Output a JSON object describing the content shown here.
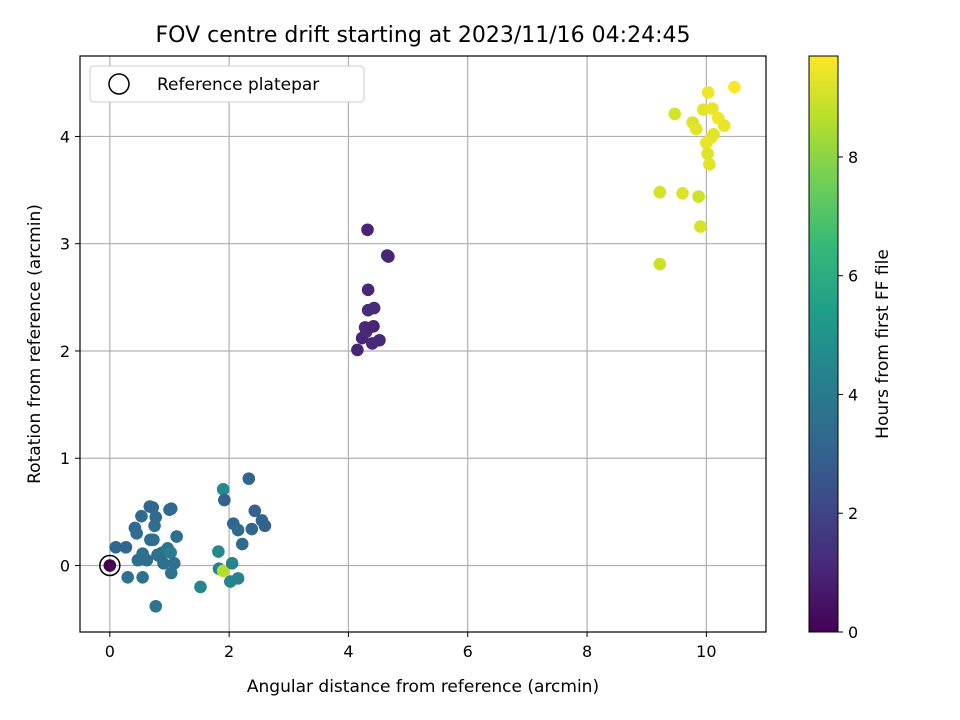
{
  "chart_data": {
    "type": "scatter",
    "title": "FOV centre drift starting at 2023/11/16 04:24:45",
    "xlabel": "Angular distance from reference (arcmin)",
    "ylabel": "Rotation from reference (arcmin)",
    "xlim": [
      -0.5,
      11.0
    ],
    "ylim": [
      -0.62,
      4.75
    ],
    "xticks": [
      0,
      2,
      4,
      6,
      8,
      10
    ],
    "yticks": [
      0,
      1,
      2,
      3,
      4
    ],
    "grid": true,
    "legend": {
      "placement": "top-left",
      "entries": [
        "Reference platepar"
      ]
    },
    "reference_point": {
      "x": 0.0,
      "y": 0.0
    },
    "colorbar": {
      "label": "Hours from first FF file",
      "range": [
        0,
        9.7
      ],
      "ticks": [
        0,
        2,
        4,
        6,
        8
      ],
      "colormap": [
        "#440154",
        "#482878",
        "#3e4989",
        "#31688e",
        "#26828e",
        "#1f9e89",
        "#35b779",
        "#6ece58",
        "#b5de2b",
        "#fde725"
      ]
    },
    "series": [
      {
        "points": [
          {
            "x": 0.0,
            "y": 0.0,
            "c": 0.0
          },
          {
            "x": 0.1,
            "y": 0.17,
            "c": 3.2
          },
          {
            "x": 0.27,
            "y": 0.17,
            "c": 3.2
          },
          {
            "x": 0.3,
            "y": -0.11,
            "c": 3.6
          },
          {
            "x": 0.42,
            "y": 0.35,
            "c": 3.3
          },
          {
            "x": 0.45,
            "y": 0.3,
            "c": 3.4
          },
          {
            "x": 0.47,
            "y": 0.05,
            "c": 3.5
          },
          {
            "x": 0.53,
            "y": 0.46,
            "c": 3.3
          },
          {
            "x": 0.55,
            "y": 0.11,
            "c": 3.6
          },
          {
            "x": 0.55,
            "y": -0.11,
            "c": 3.7
          },
          {
            "x": 0.62,
            "y": 0.05,
            "c": 3.5
          },
          {
            "x": 0.67,
            "y": 0.55,
            "c": 3.3
          },
          {
            "x": 0.68,
            "y": 0.24,
            "c": 3.4
          },
          {
            "x": 0.72,
            "y": 0.54,
            "c": 3.2
          },
          {
            "x": 0.73,
            "y": 0.24,
            "c": 3.6
          },
          {
            "x": 0.75,
            "y": 0.37,
            "c": 3.5
          },
          {
            "x": 0.77,
            "y": 0.45,
            "c": 3.4
          },
          {
            "x": 0.77,
            "y": -0.38,
            "c": 3.8
          },
          {
            "x": 0.8,
            "y": 0.1,
            "c": 3.3
          },
          {
            "x": 0.82,
            "y": 0.09,
            "c": 3.7
          },
          {
            "x": 0.88,
            "y": 0.12,
            "c": 3.6
          },
          {
            "x": 0.9,
            "y": 0.02,
            "c": 3.5
          },
          {
            "x": 0.97,
            "y": 0.16,
            "c": 3.8
          },
          {
            "x": 1.0,
            "y": 0.52,
            "c": 3.4
          },
          {
            "x": 1.02,
            "y": 0.12,
            "c": 4.1
          },
          {
            "x": 1.03,
            "y": 0.53,
            "c": 3.3
          },
          {
            "x": 1.03,
            "y": -0.07,
            "c": 3.7
          },
          {
            "x": 1.08,
            "y": 0.02,
            "c": 3.6
          },
          {
            "x": 1.12,
            "y": 0.27,
            "c": 3.5
          },
          {
            "x": 1.52,
            "y": -0.2,
            "c": 4.4
          },
          {
            "x": 1.82,
            "y": 0.13,
            "c": 4.6
          },
          {
            "x": 1.83,
            "y": -0.03,
            "c": 4.3
          },
          {
            "x": 1.9,
            "y": 0.71,
            "c": 4.6
          },
          {
            "x": 1.9,
            "y": -0.05,
            "c": 8.6
          },
          {
            "x": 1.92,
            "y": 0.61,
            "c": 3.0
          },
          {
            "x": 2.02,
            "y": -0.15,
            "c": 4.5
          },
          {
            "x": 2.05,
            "y": 0.02,
            "c": 4.4
          },
          {
            "x": 2.07,
            "y": 0.39,
            "c": 3.2
          },
          {
            "x": 2.15,
            "y": 0.33,
            "c": 3.3
          },
          {
            "x": 2.15,
            "y": -0.12,
            "c": 4.3
          },
          {
            "x": 2.22,
            "y": 0.2,
            "c": 3.3
          },
          {
            "x": 2.33,
            "y": 0.81,
            "c": 3.1
          },
          {
            "x": 2.38,
            "y": 0.34,
            "c": 3.2
          },
          {
            "x": 2.43,
            "y": 0.51,
            "c": 3.0
          },
          {
            "x": 2.55,
            "y": 0.42,
            "c": 3.1
          },
          {
            "x": 2.6,
            "y": 0.37,
            "c": 3.0
          },
          {
            "x": 4.15,
            "y": 2.01,
            "c": 1.0
          },
          {
            "x": 4.23,
            "y": 2.12,
            "c": 1.0
          },
          {
            "x": 4.28,
            "y": 2.22,
            "c": 1.1
          },
          {
            "x": 4.3,
            "y": 2.18,
            "c": 1.2
          },
          {
            "x": 4.32,
            "y": 3.13,
            "c": 1.0
          },
          {
            "x": 4.33,
            "y": 2.57,
            "c": 1.1
          },
          {
            "x": 4.33,
            "y": 2.38,
            "c": 1.2
          },
          {
            "x": 4.4,
            "y": 2.07,
            "c": 1.1
          },
          {
            "x": 4.42,
            "y": 2.23,
            "c": 1.0
          },
          {
            "x": 4.43,
            "y": 2.4,
            "c": 1.2
          },
          {
            "x": 4.52,
            "y": 2.1,
            "c": 1.1
          },
          {
            "x": 4.65,
            "y": 2.89,
            "c": 1.1
          },
          {
            "x": 4.67,
            "y": 2.88,
            "c": 1.0
          },
          {
            "x": 9.22,
            "y": 3.48,
            "c": 9.1
          },
          {
            "x": 9.22,
            "y": 2.81,
            "c": 9.0
          },
          {
            "x": 9.47,
            "y": 4.21,
            "c": 9.1
          },
          {
            "x": 9.6,
            "y": 3.47,
            "c": 9.2
          },
          {
            "x": 9.77,
            "y": 4.13,
            "c": 9.2
          },
          {
            "x": 9.83,
            "y": 4.07,
            "c": 9.3
          },
          {
            "x": 9.87,
            "y": 3.44,
            "c": 9.0
          },
          {
            "x": 9.9,
            "y": 3.16,
            "c": 9.1
          },
          {
            "x": 9.95,
            "y": 4.25,
            "c": 9.3
          },
          {
            "x": 10.0,
            "y": 3.94,
            "c": 9.4
          },
          {
            "x": 10.02,
            "y": 3.84,
            "c": 9.2
          },
          {
            "x": 10.03,
            "y": 4.41,
            "c": 9.5
          },
          {
            "x": 10.05,
            "y": 3.74,
            "c": 9.3
          },
          {
            "x": 10.08,
            "y": 3.99,
            "c": 9.4
          },
          {
            "x": 10.1,
            "y": 4.26,
            "c": 9.4
          },
          {
            "x": 10.12,
            "y": 4.02,
            "c": 9.3
          },
          {
            "x": 10.2,
            "y": 4.17,
            "c": 9.5
          },
          {
            "x": 10.3,
            "y": 4.1,
            "c": 9.4
          },
          {
            "x": 10.47,
            "y": 4.46,
            "c": 9.7
          }
        ]
      }
    ]
  }
}
